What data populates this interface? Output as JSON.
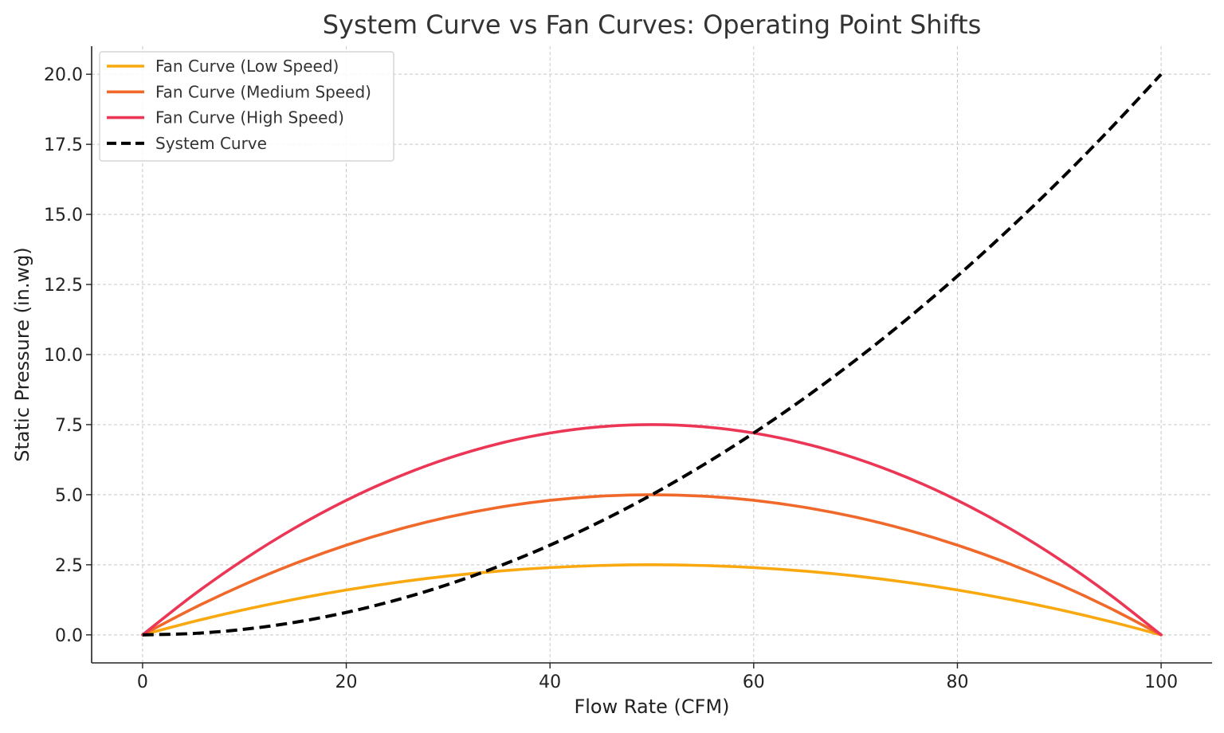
{
  "chart_data": {
    "type": "line",
    "title": "System Curve vs Fan Curves: Operating Point Shifts",
    "xlabel": "Flow Rate (CFM)",
    "ylabel": "Static Pressure (in.wg)",
    "xlim": [
      -5,
      105
    ],
    "ylim": [
      -1,
      21
    ],
    "xticks": [
      0,
      20,
      40,
      60,
      80,
      100
    ],
    "xtick_labels": [
      "0",
      "20",
      "40",
      "60",
      "80",
      "100"
    ],
    "yticks": [
      0,
      2.5,
      5,
      7.5,
      10,
      12.5,
      15,
      17.5,
      20
    ],
    "ytick_labels": [
      "0.0",
      "2.5",
      "5.0",
      "7.5",
      "10.0",
      "12.5",
      "15.0",
      "17.5",
      "20.0"
    ],
    "grid": true,
    "legend_position": "top-left",
    "x": [
      0,
      5,
      10,
      15,
      20,
      25,
      30,
      35,
      40,
      45,
      50,
      55,
      60,
      65,
      70,
      75,
      80,
      85,
      90,
      95,
      100
    ],
    "series": [
      {
        "name": "Fan Curve (Low Speed)",
        "color": "#f9a90f",
        "style": "solid",
        "values": [
          0,
          0.475,
          0.9,
          1.275,
          1.6,
          1.875,
          2.1,
          2.275,
          2.4,
          2.475,
          2.5,
          2.475,
          2.4,
          2.275,
          2.1,
          1.875,
          1.6,
          1.275,
          0.9,
          0.475,
          0
        ]
      },
      {
        "name": "Fan Curve (Medium Speed)",
        "color": "#f0692a",
        "style": "solid",
        "values": [
          0,
          0.95,
          1.8,
          2.55,
          3.2,
          3.75,
          4.2,
          4.55,
          4.8,
          4.95,
          5.0,
          4.95,
          4.8,
          4.55,
          4.2,
          3.75,
          3.2,
          2.55,
          1.8,
          0.95,
          0
        ]
      },
      {
        "name": "Fan Curve (High Speed)",
        "color": "#ec3656",
        "style": "solid",
        "values": [
          0,
          1.425,
          2.7,
          3.825,
          4.8,
          5.625,
          6.3,
          6.825,
          7.2,
          7.425,
          7.5,
          7.425,
          7.2,
          6.825,
          6.3,
          5.625,
          4.8,
          3.825,
          2.7,
          1.425,
          0
        ]
      },
      {
        "name": "System Curve",
        "color": "#000000",
        "style": "dashed",
        "values": [
          0,
          0.05,
          0.2,
          0.45,
          0.8,
          1.25,
          1.8,
          2.45,
          3.2,
          4.05,
          5.0,
          6.05,
          7.2,
          8.45,
          9.8,
          11.25,
          12.8,
          14.45,
          16.2,
          18.05,
          20.0
        ]
      }
    ]
  }
}
